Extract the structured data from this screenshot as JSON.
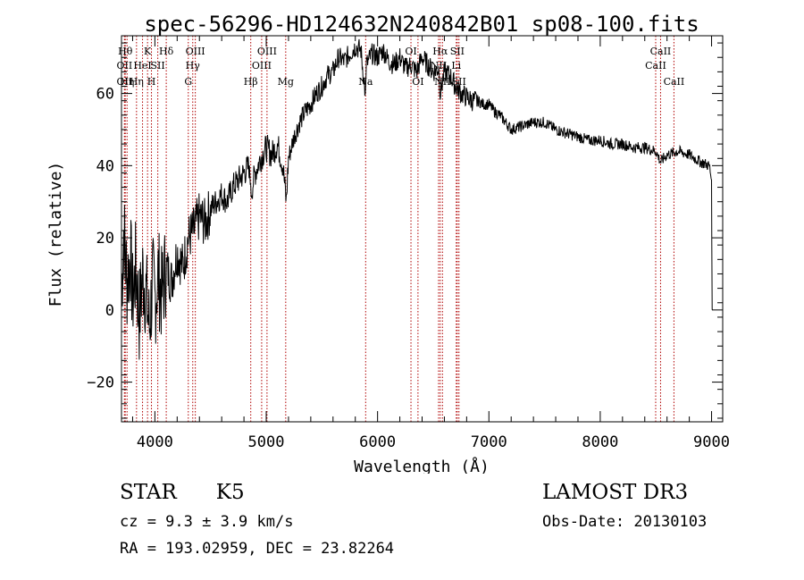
{
  "chart_data": {
    "type": "line",
    "title": "spec-56296-HD124632N240842B01_sp08-100.fits",
    "xlabel": "Wavelength (Å)",
    "ylabel": "Flux (relative)",
    "xlim": [
      3700,
      9100
    ],
    "ylim": [
      -31,
      76
    ],
    "xticks": [
      4000,
      5000,
      6000,
      7000,
      8000,
      9000
    ],
    "yticks": [
      -20,
      0,
      20,
      40,
      60
    ],
    "xtick_labels": [
      "4000",
      "5000",
      "6000",
      "7000",
      "8000",
      "9000"
    ],
    "ytick_labels": [
      "−20",
      "0",
      "20",
      "40",
      "60"
    ],
    "series": [
      {
        "name": "flux",
        "x": [
          3700,
          3720,
          3750,
          3780,
          3800,
          3830,
          3860,
          3890,
          3920,
          3950,
          3980,
          4000,
          4030,
          4060,
          4100,
          4150,
          4200,
          4250,
          4300,
          4350,
          4400,
          4450,
          4500,
          4550,
          4600,
          4650,
          4700,
          4750,
          4800,
          4850,
          4860,
          4900,
          4950,
          5000,
          5050,
          5100,
          5150,
          5180,
          5200,
          5250,
          5300,
          5350,
          5400,
          5450,
          5500,
          5550,
          5600,
          5650,
          5700,
          5750,
          5800,
          5850,
          5890,
          5900,
          5950,
          6000,
          6050,
          6100,
          6150,
          6200,
          6250,
          6300,
          6350,
          6400,
          6450,
          6500,
          6550,
          6563,
          6600,
          6650,
          6700,
          6750,
          6800,
          6850,
          6900,
          6950,
          7000,
          7050,
          7100,
          7150,
          7200,
          7300,
          7400,
          7500,
          7600,
          7700,
          7800,
          7900,
          8000,
          8100,
          8200,
          8300,
          8400,
          8500,
          8542,
          8600,
          8700,
          8800,
          8900,
          8980,
          9000,
          9005
        ],
        "y": [
          5,
          22,
          8,
          15,
          3,
          12,
          -2,
          10,
          5,
          -5,
          8,
          2,
          10,
          4,
          12,
          8,
          16,
          12,
          20,
          22,
          26,
          24,
          28,
          30,
          32,
          30,
          34,
          36,
          38,
          40,
          32,
          38,
          42,
          45,
          43,
          46,
          40,
          30,
          42,
          48,
          52,
          55,
          57,
          60,
          62,
          65,
          66,
          70,
          69,
          71,
          73,
          72,
          60,
          68,
          71,
          70,
          72,
          69,
          68,
          70,
          67,
          68,
          66,
          70,
          68,
          66,
          67,
          60,
          66,
          65,
          62,
          60,
          59,
          58,
          58,
          57,
          57,
          55,
          54,
          52,
          50,
          51,
          52,
          52,
          50,
          49,
          48,
          47,
          47,
          46,
          46,
          45,
          45,
          44,
          41,
          43,
          44,
          43,
          41,
          40,
          36,
          0
        ]
      }
    ],
    "line_labels": [
      {
        "x": 3734,
        "text": "Hθ",
        "row": 1
      },
      {
        "x": 3727,
        "text": "OII",
        "row": 2
      },
      {
        "x": 3727,
        "text": "OII",
        "row": 3
      },
      {
        "x": 3750,
        "text": "Hη",
        "row": 3
      },
      {
        "x": 3835,
        "text": "Hη",
        "row": 3
      },
      {
        "x": 3889,
        "text": "HeI",
        "row": 2
      },
      {
        "x": 3934,
        "text": "K",
        "row": 1
      },
      {
        "x": 3969,
        "text": "H",
        "row": 3
      },
      {
        "x": 4026,
        "text": "SII",
        "row": 2
      },
      {
        "x": 4102,
        "text": "Hδ",
        "row": 1
      },
      {
        "x": 4300,
        "text": "G",
        "row": 3
      },
      {
        "x": 4340,
        "text": "Hγ",
        "row": 2
      },
      {
        "x": 4363,
        "text": "OIII",
        "row": 1
      },
      {
        "x": 4861,
        "text": "Hβ",
        "row": 3
      },
      {
        "x": 4959,
        "text": "OIII",
        "row": 2
      },
      {
        "x": 5007,
        "text": "OIII",
        "row": 1
      },
      {
        "x": 5175,
        "text": "Mg",
        "row": 3
      },
      {
        "x": 5893,
        "text": "Na",
        "row": 3
      },
      {
        "x": 6300,
        "text": "OI",
        "row": 1
      },
      {
        "x": 6363,
        "text": "OI",
        "row": 3
      },
      {
        "x": 6548,
        "text": "NII",
        "row": 2
      },
      {
        "x": 6563,
        "text": "Hα",
        "row": 1
      },
      {
        "x": 6583,
        "text": "NII",
        "row": 3
      },
      {
        "x": 6707,
        "text": "Li",
        "row": 2
      },
      {
        "x": 6716,
        "text": "SII",
        "row": 1
      },
      {
        "x": 6731,
        "text": "SII",
        "row": 3
      },
      {
        "x": 8498,
        "text": "CaII",
        "row": 2
      },
      {
        "x": 8542,
        "text": "CaII",
        "row": 1
      },
      {
        "x": 8662,
        "text": "CaII",
        "row": 3
      }
    ]
  },
  "info": {
    "object_type": "STAR",
    "subclass": "K5",
    "survey": "LAMOST DR3",
    "cz": "cz = 9.3 ± 3.9 km/s",
    "obs_date": "Obs-Date: 20130103",
    "coords": "RA = 193.02959, DEC =  23.82264"
  },
  "colors": {
    "spectrum": "#000000",
    "line_markers": "#b00000",
    "axes": "#000000"
  }
}
